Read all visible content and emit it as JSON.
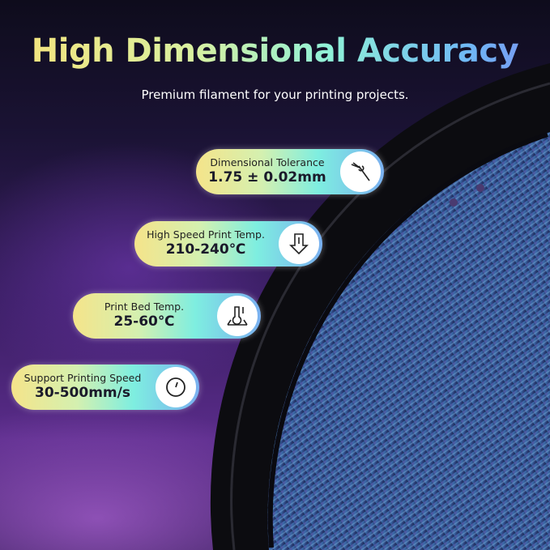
{
  "title": "High Dimensional Accuracy",
  "subtitle": "Premium filament for your printing projects.",
  "specs": [
    {
      "label": "Dimensional Tolerance",
      "value": "1.75 ± 0.02mm",
      "icon": "caliper-icon"
    },
    {
      "label": "High Speed Print Temp.",
      "value": "210-240℃",
      "icon": "nozzle-temperature-icon"
    },
    {
      "label": "Print Bed Temp.",
      "value": "25-60℃",
      "icon": "bed-temperature-icon"
    },
    {
      "label": "Support Printing Speed",
      "value": "30-500mm/s",
      "icon": "speedometer-icon"
    }
  ],
  "colors": {
    "filament": "#3c5a9a",
    "spool": "#111114"
  }
}
